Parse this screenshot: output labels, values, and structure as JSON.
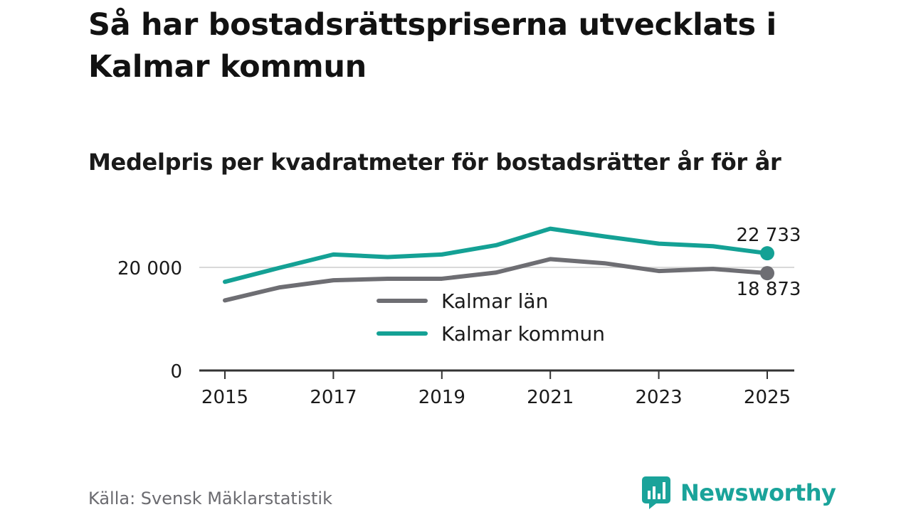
{
  "title": "Så har bostadsrättspriserna utvecklats i Kalmar kommun",
  "subtitle": "Medelpris per kvadratmeter för bostadsrätter år för år",
  "source": "Källa: Svensk Mäklarstatistik",
  "brand": {
    "name": "Newsworthy",
    "icon": "newsworthy-logo-icon",
    "color": "#1aa39a"
  },
  "chart_data": {
    "type": "line",
    "title": "Så har bostadsrättspriserna utvecklats i Kalmar kommun",
    "subtitle": "Medelpris per kvadratmeter för bostadsrätter år för år",
    "xlabel": "",
    "ylabel": "",
    "x": [
      2015,
      2016,
      2017,
      2018,
      2019,
      2020,
      2021,
      2022,
      2023,
      2024,
      2025
    ],
    "x_ticks": [
      2015,
      2017,
      2019,
      2021,
      2023,
      2025
    ],
    "y_ticks": [
      0,
      20000
    ],
    "y_tick_labels": [
      "0",
      "20 000"
    ],
    "ylim": [
      0,
      30000
    ],
    "grid": "horizontal at 20 000",
    "legend_placement": "center",
    "series": [
      {
        "name": "Kalmar län",
        "color": "#6e6e73",
        "values": [
          13600,
          16100,
          17500,
          17800,
          17800,
          19000,
          21600,
          20800,
          19300,
          19700,
          18873
        ],
        "end_label": "18 873"
      },
      {
        "name": "Kalmar kommun",
        "color": "#14a195",
        "values": [
          17200,
          19900,
          22500,
          22000,
          22500,
          24300,
          27500,
          26000,
          24600,
          24100,
          22733
        ],
        "end_label": "22 733"
      }
    ]
  }
}
